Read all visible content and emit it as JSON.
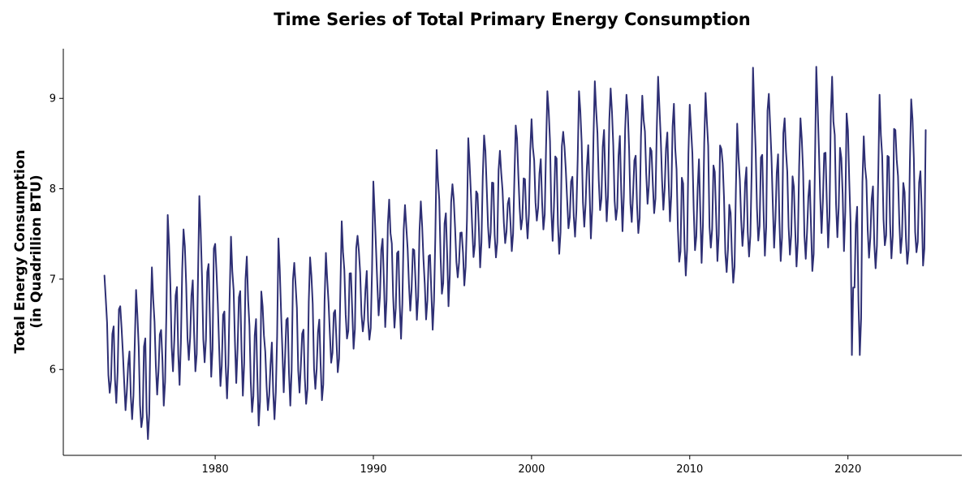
{
  "chart_data": {
    "type": "line",
    "title": "Time Series of Total Primary Energy Consumption",
    "xlabel": "",
    "ylabel_lines": [
      "Total Energy Consumption",
      "(in Quadrillion BTU)"
    ],
    "xlim": [
      1970.4,
      2027.2
    ],
    "ylim": [
      5.05,
      9.55
    ],
    "x_ticks": [
      1980,
      1990,
      2000,
      2010,
      2020
    ],
    "x_tick_labels": [
      "1980",
      "1990",
      "2000",
      "2010",
      "2020"
    ],
    "y_ticks": [
      6,
      7,
      8,
      9
    ],
    "y_tick_labels": [
      "6",
      "7",
      "8",
      "9"
    ],
    "grid": false,
    "spines": "left-bottom",
    "line_color": "#2e2f74",
    "series": [
      {
        "frequency": "monthly",
        "start": "1973-01",
        "end": "2024-12",
        "annual_peaks": [
          [
            1973,
            7.04
          ],
          [
            1974,
            6.7
          ],
          [
            1975,
            6.88
          ],
          [
            1976,
            7.13
          ],
          [
            1977,
            7.71
          ],
          [
            1978,
            7.55
          ],
          [
            1979,
            7.92
          ],
          [
            1980,
            7.39
          ],
          [
            1981,
            7.47
          ],
          [
            1982,
            7.25
          ],
          [
            1983,
            6.7
          ],
          [
            1984,
            7.45
          ],
          [
            1985,
            7.18
          ],
          [
            1986,
            7.24
          ],
          [
            1987,
            7.29
          ],
          [
            1988,
            7.64
          ],
          [
            1989,
            7.48
          ],
          [
            1990,
            8.08
          ],
          [
            1991,
            7.88
          ],
          [
            1992,
            7.82
          ],
          [
            1993,
            7.86
          ],
          [
            1994,
            8.43
          ],
          [
            1995,
            8.05
          ],
          [
            1996,
            8.56
          ],
          [
            1997,
            8.59
          ],
          [
            1998,
            8.42
          ],
          [
            1999,
            8.7
          ],
          [
            2000,
            8.77
          ],
          [
            2001,
            9.08
          ],
          [
            2002,
            8.63
          ],
          [
            2003,
            9.08
          ],
          [
            2004,
            9.19
          ],
          [
            2005,
            9.11
          ],
          [
            2006,
            9.04
          ],
          [
            2007,
            9.03
          ],
          [
            2008,
            9.24
          ],
          [
            2009,
            8.94
          ],
          [
            2010,
            8.93
          ],
          [
            2011,
            9.06
          ],
          [
            2012,
            8.44
          ],
          [
            2013,
            8.72
          ],
          [
            2014,
            9.34
          ],
          [
            2015,
            9.05
          ],
          [
            2016,
            8.78
          ],
          [
            2017,
            8.78
          ],
          [
            2018,
            9.35
          ],
          [
            2019,
            9.24
          ],
          [
            2020,
            8.65
          ],
          [
            2021,
            8.58
          ],
          [
            2022,
            9.04
          ],
          [
            2023,
            8.65
          ],
          [
            2024,
            8.99
          ]
        ],
        "annual_troughs": [
          [
            1973,
            5.63
          ],
          [
            1974,
            5.45
          ],
          [
            1975,
            5.23
          ],
          [
            1976,
            5.6
          ],
          [
            1977,
            5.83
          ],
          [
            1978,
            5.98
          ],
          [
            1979,
            5.92
          ],
          [
            1980,
            5.68
          ],
          [
            1981,
            5.71
          ],
          [
            1982,
            5.38
          ],
          [
            1983,
            5.45
          ],
          [
            1984,
            5.6
          ],
          [
            1985,
            5.62
          ],
          [
            1986,
            5.66
          ],
          [
            1987,
            5.97
          ],
          [
            1988,
            6.23
          ],
          [
            1989,
            6.33
          ],
          [
            1990,
            6.47
          ],
          [
            1991,
            6.34
          ],
          [
            1992,
            6.55
          ],
          [
            1993,
            6.44
          ],
          [
            1994,
            6.7
          ],
          [
            1995,
            6.93
          ],
          [
            1996,
            7.13
          ],
          [
            1997,
            7.24
          ],
          [
            1998,
            7.31
          ],
          [
            1999,
            7.45
          ],
          [
            2000,
            7.55
          ],
          [
            2001,
            7.28
          ],
          [
            2002,
            7.47
          ],
          [
            2003,
            7.45
          ],
          [
            2004,
            7.64
          ],
          [
            2005,
            7.53
          ],
          [
            2006,
            7.51
          ],
          [
            2007,
            7.73
          ],
          [
            2008,
            7.64
          ],
          [
            2009,
            7.04
          ],
          [
            2010,
            7.18
          ],
          [
            2011,
            7.2
          ],
          [
            2012,
            6.96
          ],
          [
            2013,
            7.25
          ],
          [
            2014,
            7.26
          ],
          [
            2015,
            7.2
          ],
          [
            2016,
            7.14
          ],
          [
            2017,
            7.09
          ],
          [
            2018,
            7.35
          ],
          [
            2019,
            7.31
          ],
          [
            2020,
            6.16
          ],
          [
            2021,
            7.12
          ],
          [
            2022,
            7.23
          ],
          [
            2023,
            7.17
          ],
          [
            2024,
            7.15
          ]
        ],
        "last_value": 8.65
      }
    ]
  }
}
